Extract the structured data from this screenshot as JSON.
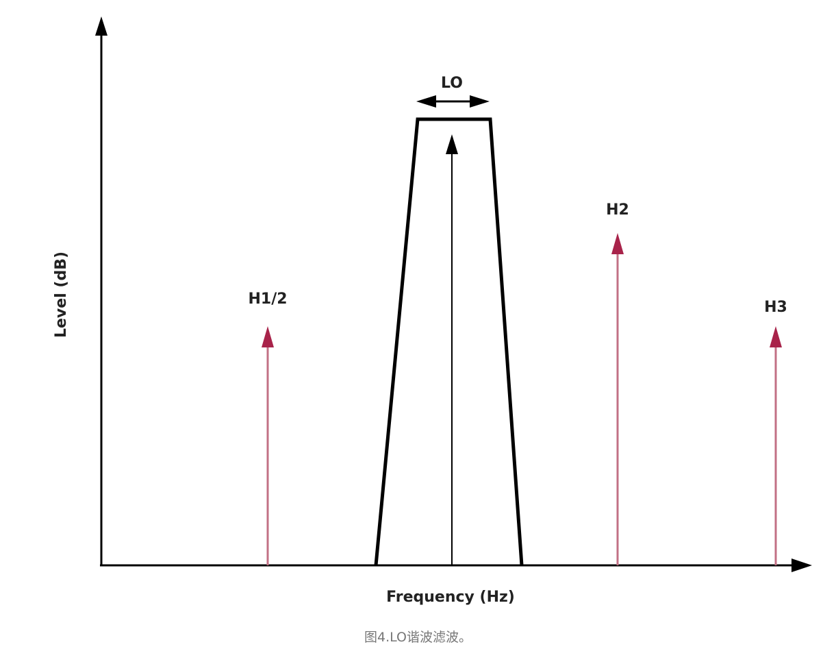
{
  "diagram": {
    "y_axis_label": "Level (dB)",
    "x_axis_label": "Frequency (Hz)",
    "lo_label": "LO",
    "harmonics": [
      {
        "label": "H1/2",
        "relative_level": 0.5
      },
      {
        "label": "H2",
        "relative_level": 0.7
      },
      {
        "label": "H3",
        "relative_level": 0.5
      }
    ],
    "colors": {
      "harmonic_arrow": "#a8234a",
      "harmonic_line": "#c27085",
      "axis": "#000000"
    }
  },
  "caption": "图4.LO谐波滤波。"
}
